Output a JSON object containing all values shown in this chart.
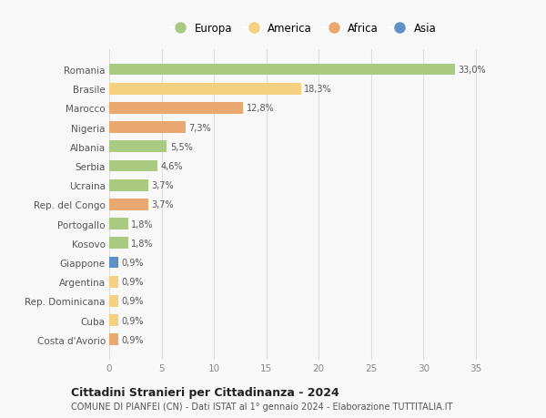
{
  "countries": [
    "Romania",
    "Brasile",
    "Marocco",
    "Nigeria",
    "Albania",
    "Serbia",
    "Ucraina",
    "Rep. del Congo",
    "Portogallo",
    "Kosovo",
    "Giappone",
    "Argentina",
    "Rep. Dominicana",
    "Cuba",
    "Costa d'Avorio"
  ],
  "values": [
    33.0,
    18.3,
    12.8,
    7.3,
    5.5,
    4.6,
    3.7,
    3.7,
    1.8,
    1.8,
    0.9,
    0.9,
    0.9,
    0.9,
    0.9
  ],
  "labels": [
    "33,0%",
    "18,3%",
    "12,8%",
    "7,3%",
    "5,5%",
    "4,6%",
    "3,7%",
    "3,7%",
    "1,8%",
    "1,8%",
    "0,9%",
    "0,9%",
    "0,9%",
    "0,9%",
    "0,9%"
  ],
  "continents": [
    "Europa",
    "America",
    "Africa",
    "Africa",
    "Europa",
    "Europa",
    "Europa",
    "Africa",
    "Europa",
    "Europa",
    "Asia",
    "America",
    "America",
    "America",
    "Africa"
  ],
  "continent_colors": {
    "Europa": "#aaca82",
    "America": "#f5d080",
    "Africa": "#e8a870",
    "Asia": "#6090c8"
  },
  "legend_order": [
    "Europa",
    "America",
    "Africa",
    "Asia"
  ],
  "title": "Cittadini Stranieri per Cittadinanza - 2024",
  "subtitle": "COMUNE DI PIANFEI (CN) - Dati ISTAT al 1° gennaio 2024 - Elaborazione TUTTITALIA.IT",
  "xlim": [
    0,
    37
  ],
  "xticks": [
    0,
    5,
    10,
    15,
    20,
    25,
    30,
    35
  ],
  "bg_color": "#f8f8f8",
  "grid_color": "#dddddd",
  "bar_height": 0.6
}
